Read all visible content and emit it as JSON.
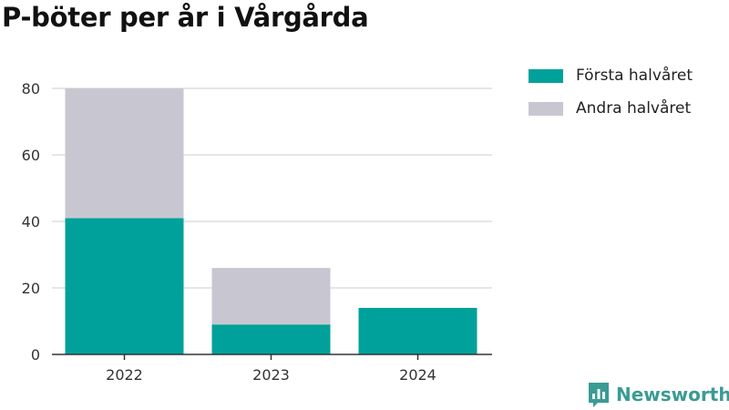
{
  "chart_data": {
    "type": "bar",
    "stacked": true,
    "title": "P-böter per år i Vårgårda",
    "xlabel": "",
    "ylabel": "",
    "categories": [
      "2022",
      "2023",
      "2024"
    ],
    "series": [
      {
        "name": "Första halvåret",
        "values": [
          41,
          9,
          14
        ],
        "color": "#00a19a"
      },
      {
        "name": "Andra halvåret",
        "values": [
          39,
          17,
          0
        ],
        "color": "#c8c7d1"
      }
    ],
    "ylim": [
      0,
      80
    ],
    "yticks": [
      0,
      20,
      40,
      60,
      80
    ],
    "grid": true,
    "legend": "top-right"
  },
  "brand": {
    "name": "Newsworthy",
    "color": "#3a9b94",
    "icon": "newsworthy-logo-icon"
  }
}
